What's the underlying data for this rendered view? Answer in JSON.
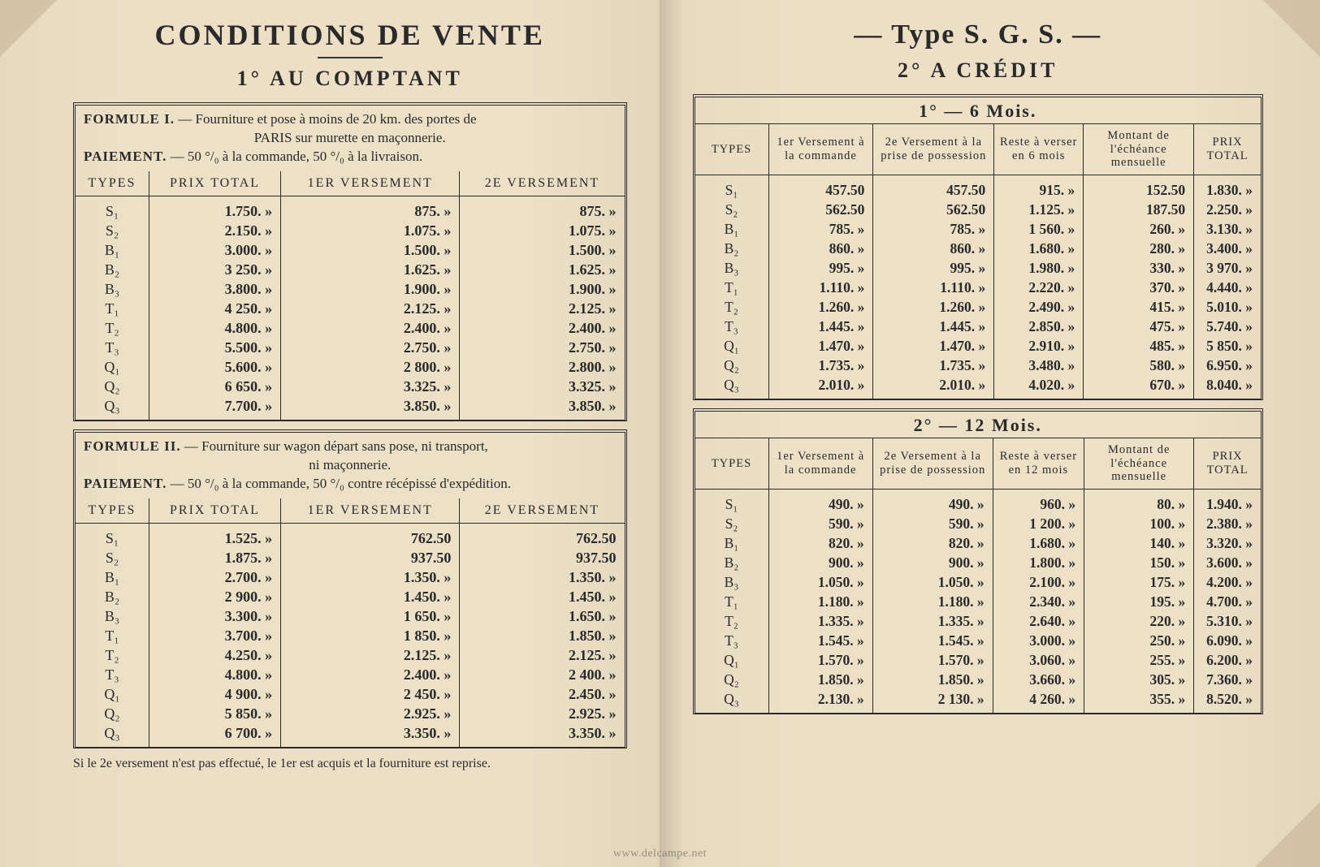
{
  "colors": {
    "paper": "#e8dcc4",
    "ink": "#2a2a2a",
    "fold": "#bfae8c"
  },
  "typography": {
    "family": "Times New Roman / serif",
    "title_size_pt": 28,
    "subtitle_size_pt": 20,
    "body_size_pt": 13
  },
  "left": {
    "title": "CONDITIONS DE VENTE",
    "subtitle": "1° AU COMPTANT",
    "formule1": {
      "heading": "FORMULE I.",
      "text1": "— Fourniture et pose à moins de 20 km. des portes de",
      "text2": "PARIS sur murette en maçonnerie.",
      "paiement_label": "PAIEMENT.",
      "paiement_text": "— 50 °/₀ à la commande, 50 °/₀ à la livraison.",
      "columns": [
        "TYPES",
        "PRIX TOTAL",
        "1er VERSEMENT",
        "2e VERSEMENT"
      ],
      "rows": [
        {
          "type": "S₁",
          "total": "1.750. »",
          "v1": "875. »",
          "v2": "875. »"
        },
        {
          "type": "S₂",
          "total": "2.150. »",
          "v1": "1.075. »",
          "v2": "1.075. »"
        },
        {
          "type": "B₁",
          "total": "3.000. »",
          "v1": "1.500. »",
          "v2": "1.500. »"
        },
        {
          "type": "B₂",
          "total": "3 250. »",
          "v1": "1.625. »",
          "v2": "1.625. »"
        },
        {
          "type": "B₃",
          "total": "3.800. »",
          "v1": "1.900. »",
          "v2": "1.900. »"
        },
        {
          "type": "T₁",
          "total": "4 250. »",
          "v1": "2.125. »",
          "v2": "2.125. »"
        },
        {
          "type": "T₂",
          "total": "4.800. »",
          "v1": "2.400. »",
          "v2": "2.400. »"
        },
        {
          "type": "T₃",
          "total": "5.500. »",
          "v1": "2.750. »",
          "v2": "2.750. »"
        },
        {
          "type": "Q₁",
          "total": "5.600. »",
          "v1": "2 800. »",
          "v2": "2.800. »"
        },
        {
          "type": "Q₂",
          "total": "6 650. »",
          "v1": "3.325. »",
          "v2": "3.325. »"
        },
        {
          "type": "Q₃",
          "total": "7.700. »",
          "v1": "3.850. »",
          "v2": "3.850. »"
        }
      ]
    },
    "formule2": {
      "heading": "FORMULE II.",
      "text1": "— Fourniture sur wagon départ sans pose, ni transport,",
      "text2": "ni maçonnerie.",
      "paiement_label": "PAIEMENT.",
      "paiement_text": "— 50 °/₀ à la commande, 50 °/₀ contre récépissé d'expédition.",
      "columns": [
        "TYPES",
        "PRIX TOTAL",
        "1er VERSEMENT",
        "2e VERSEMENT"
      ],
      "rows": [
        {
          "type": "S₁",
          "total": "1.525. »",
          "v1": "762.50",
          "v2": "762.50"
        },
        {
          "type": "S₂",
          "total": "1.875. »",
          "v1": "937.50",
          "v2": "937.50"
        },
        {
          "type": "B₁",
          "total": "2.700. »",
          "v1": "1.350. »",
          "v2": "1.350. »"
        },
        {
          "type": "B₂",
          "total": "2 900. »",
          "v1": "1.450. »",
          "v2": "1.450. »"
        },
        {
          "type": "B₃",
          "total": "3.300. »",
          "v1": "1 650. »",
          "v2": "1.650. »"
        },
        {
          "type": "T₁",
          "total": "3.700. »",
          "v1": "1 850. »",
          "v2": "1.850. »"
        },
        {
          "type": "T₂",
          "total": "4.250. »",
          "v1": "2.125. »",
          "v2": "2.125. »"
        },
        {
          "type": "T₃",
          "total": "4.800. »",
          "v1": "2.400. »",
          "v2": "2 400. »"
        },
        {
          "type": "Q₁",
          "total": "4 900. »",
          "v1": "2 450. »",
          "v2": "2.450. »"
        },
        {
          "type": "Q₂",
          "total": "5 850. »",
          "v1": "2.925. »",
          "v2": "2.925. »"
        },
        {
          "type": "Q₃",
          "total": "6 700. »",
          "v1": "3.350. »",
          "v2": "3.350. »"
        }
      ]
    },
    "footnote": "Si le 2e versement n'est pas effectué, le 1er est acquis et la fourniture est reprise."
  },
  "right": {
    "title": "— Type S. G. S. —",
    "subtitle": "2° A CRÉDIT",
    "credit6": {
      "section": "1° — 6 Mois.",
      "columns": [
        "TYPES",
        "1er Versement à la commande",
        "2e Versement à la prise de possession",
        "Reste à verser en 6 mois",
        "Montant de l'échéance mensuelle",
        "PRIX TOTAL"
      ],
      "rows": [
        {
          "type": "S₁",
          "c1": "457.50",
          "c2": "457.50",
          "c3": "915. »",
          "c4": "152.50",
          "c5": "1.830. »"
        },
        {
          "type": "S₂",
          "c1": "562.50",
          "c2": "562.50",
          "c3": "1.125. »",
          "c4": "187.50",
          "c5": "2.250. »"
        },
        {
          "type": "B₁",
          "c1": "785. »",
          "c2": "785. »",
          "c3": "1 560. »",
          "c4": "260. »",
          "c5": "3.130. »"
        },
        {
          "type": "B₂",
          "c1": "860. »",
          "c2": "860. »",
          "c3": "1.680. »",
          "c4": "280. »",
          "c5": "3.400. »"
        },
        {
          "type": "B₃",
          "c1": "995. »",
          "c2": "995. »",
          "c3": "1.980. »",
          "c4": "330. »",
          "c5": "3 970. »"
        },
        {
          "type": "T₁",
          "c1": "1.110. »",
          "c2": "1.110. »",
          "c3": "2.220. »",
          "c4": "370. »",
          "c5": "4.440. »"
        },
        {
          "type": "T₂",
          "c1": "1.260. »",
          "c2": "1.260. »",
          "c3": "2.490. »",
          "c4": "415. »",
          "c5": "5.010. »"
        },
        {
          "type": "T₃",
          "c1": "1.445. »",
          "c2": "1.445. »",
          "c3": "2.850. »",
          "c4": "475. »",
          "c5": "5.740. »"
        },
        {
          "type": "Q₁",
          "c1": "1.470. »",
          "c2": "1.470. »",
          "c3": "2.910. »",
          "c4": "485. »",
          "c5": "5 850. »"
        },
        {
          "type": "Q₂",
          "c1": "1.735. »",
          "c2": "1.735. »",
          "c3": "3.480. »",
          "c4": "580. »",
          "c5": "6.950. »"
        },
        {
          "type": "Q₃",
          "c1": "2.010. »",
          "c2": "2.010. »",
          "c3": "4.020. »",
          "c4": "670. »",
          "c5": "8.040. »"
        }
      ]
    },
    "credit12": {
      "section": "2° — 12 Mois.",
      "columns": [
        "TYPES",
        "1er Versement à la commande",
        "2e Versement à la prise de possession",
        "Reste à verser en 12 mois",
        "Montant de l'échéance mensuelle",
        "PRIX TOTAL"
      ],
      "rows": [
        {
          "type": "S₁",
          "c1": "490. »",
          "c2": "490. »",
          "c3": "960. »",
          "c4": "80. »",
          "c5": "1.940. »"
        },
        {
          "type": "S₂",
          "c1": "590. »",
          "c2": "590. »",
          "c3": "1 200. »",
          "c4": "100. »",
          "c5": "2.380. »"
        },
        {
          "type": "B₁",
          "c1": "820. »",
          "c2": "820. »",
          "c3": "1.680. »",
          "c4": "140. »",
          "c5": "3.320. »"
        },
        {
          "type": "B₂",
          "c1": "900. »",
          "c2": "900. »",
          "c3": "1.800. »",
          "c4": "150. »",
          "c5": "3.600. »"
        },
        {
          "type": "B₃",
          "c1": "1.050. »",
          "c2": "1.050. »",
          "c3": "2.100. »",
          "c4": "175. »",
          "c5": "4.200. »"
        },
        {
          "type": "T₁",
          "c1": "1.180. »",
          "c2": "1.180. »",
          "c3": "2.340. »",
          "c4": "195. »",
          "c5": "4.700. »"
        },
        {
          "type": "T₂",
          "c1": "1.335. »",
          "c2": "1.335. »",
          "c3": "2.640. »",
          "c4": "220. »",
          "c5": "5.310. »"
        },
        {
          "type": "T₃",
          "c1": "1.545. »",
          "c2": "1.545. »",
          "c3": "3.000. »",
          "c4": "250. »",
          "c5": "6.090. »"
        },
        {
          "type": "Q₁",
          "c1": "1.570. »",
          "c2": "1.570. »",
          "c3": "3.060. »",
          "c4": "255. »",
          "c5": "6.200. »"
        },
        {
          "type": "Q₂",
          "c1": "1.850. »",
          "c2": "1.850. »",
          "c3": "3.660. »",
          "c4": "305. »",
          "c5": "7.360. »"
        },
        {
          "type": "Q₃",
          "c1": "2.130. »",
          "c2": "2 130. »",
          "c3": "4 260. »",
          "c4": "355. »",
          "c5": "8.520. »"
        }
      ]
    }
  },
  "watermark": "www.delcampe.net"
}
